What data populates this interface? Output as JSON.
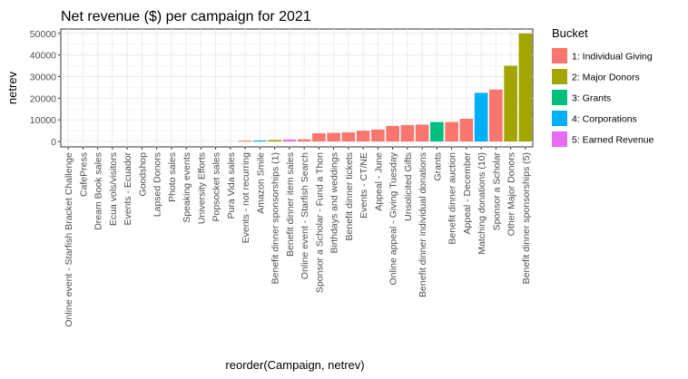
{
  "chart_data": {
    "type": "bar",
    "title": "Net revenue ($) per campaign for 2021",
    "xlabel": "reorder(Campaign, netrev)",
    "ylabel": "netrev",
    "ylim": [
      -2500,
      52000
    ],
    "yticks": [
      0,
      10000,
      20000,
      30000,
      40000,
      50000
    ],
    "ytick_labels": [
      "0",
      "10000",
      "20000",
      "30000",
      "40000",
      "50000"
    ],
    "grid": true,
    "legend_position": "right",
    "legend_title": "Bucket",
    "buckets": [
      {
        "name": "1: Individual Giving",
        "color": "#F8766D"
      },
      {
        "name": "2: Major Donors",
        "color": "#A3A500"
      },
      {
        "name": "3: Grants",
        "color": "#00BF7D"
      },
      {
        "name": "4: Corporations",
        "color": "#00B0F6"
      },
      {
        "name": "5: Earned Revenue",
        "color": "#E76BF3"
      }
    ],
    "categories": [
      "Online event - Starfish Bracket Challenge",
      "CafePress",
      "Dream Book sales",
      "Ecua vols/visitors",
      "Events - Ecuador",
      "Goodshop",
      "Lapsed Donors",
      "Photo sales",
      "Speaking events",
      "University Efforts",
      "Popsocket sales",
      "Pura Vida sales",
      "Events - not recurring",
      "Amazon Smile",
      "Benefit dinner sponsorships (1)",
      "Benefit dinner item sales",
      "Online event - Starfish Search",
      "Sponsor a Scholar - Fund a Thon",
      "Birthdays and weddings",
      "Benefit dinner tickets",
      "Events - CT/NE",
      "Appeal - June",
      "Online appeal - Giving Tuesday",
      "Unsolicited Gifts",
      "Benefit dinner individual donations",
      "Grants",
      "Benefit dinner auction",
      "Appeal - December",
      "Matching donations (10)",
      "Sponsor a Scholar",
      "Other Major Donors",
      "Benefit dinner sponsorships (5)"
    ],
    "values": [
      0,
      0,
      0,
      0,
      0,
      0,
      0,
      0,
      0,
      0,
      0,
      0,
      400,
      500,
      700,
      900,
      1000,
      3800,
      4000,
      4200,
      5000,
      5500,
      7200,
      7600,
      7800,
      9000,
      9000,
      10500,
      22500,
      24000,
      35000,
      50000
    ],
    "bucket_index": [
      0,
      4,
      4,
      0,
      0,
      3,
      0,
      4,
      0,
      0,
      4,
      4,
      0,
      3,
      1,
      4,
      0,
      0,
      0,
      0,
      0,
      0,
      0,
      0,
      0,
      2,
      0,
      0,
      3,
      0,
      1,
      1
    ]
  }
}
